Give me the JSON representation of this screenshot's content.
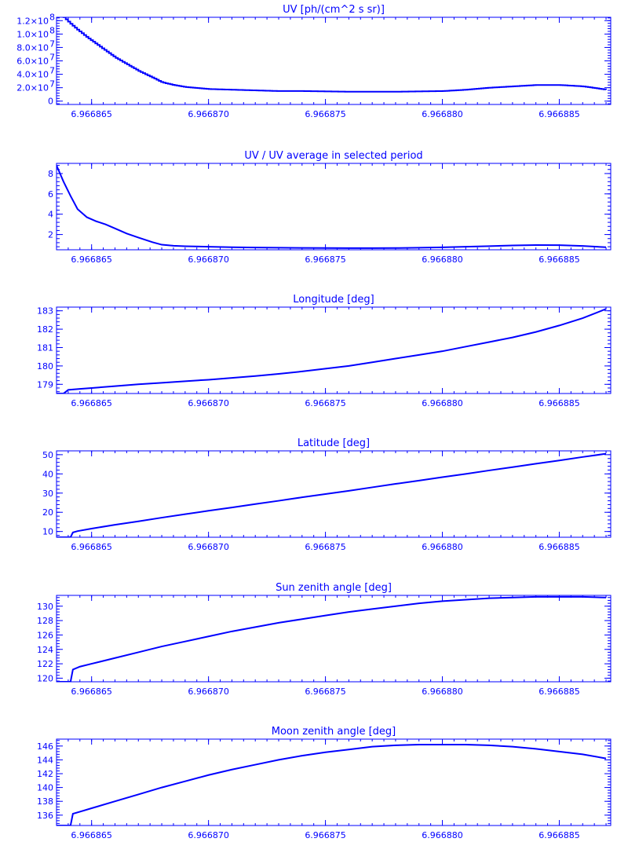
{
  "colors": {
    "ink": "#0000ff",
    "background": "#ffffff"
  },
  "chart_data": [
    {
      "type": "line",
      "title": "UV [ph/(cm^2 s sr)]",
      "xlabel": "",
      "ylabel": "",
      "grid": false,
      "xlim": [
        6.9668635,
        6.9668872
      ],
      "ylim": [
        -5000000,
        125000000
      ],
      "xticks": [
        6.966865,
        6.96687,
        6.966875,
        6.96688,
        6.966885
      ],
      "xtick_labels": [
        "6.966865",
        "6.966870",
        "6.966875",
        "6.966880",
        "6.966885"
      ],
      "yticks": [
        0,
        20000000,
        40000000,
        60000000,
        80000000,
        100000000,
        120000000
      ],
      "ytick_labels": [
        {
          "mantissa": "0",
          "exponent": ""
        },
        {
          "mantissa": "2.0×10",
          "exponent": "7"
        },
        {
          "mantissa": "4.0×10",
          "exponent": "7"
        },
        {
          "mantissa": "6.0×10",
          "exponent": "7"
        },
        {
          "mantissa": "8.0×10",
          "exponent": "7"
        },
        {
          "mantissa": "1.0×10",
          "exponent": "8"
        },
        {
          "mantissa": "1.2×10",
          "exponent": "8"
        }
      ],
      "line_style": "steps",
      "x": [
        6.9668637,
        6.9668638,
        6.9668641,
        6.9668644,
        6.9668648,
        6.9668652,
        6.9668656,
        6.966866,
        6.9668665,
        6.966867,
        6.9668676,
        6.966868,
        6.9668685,
        6.966869,
        6.96687,
        6.966871,
        6.966872,
        6.966873,
        6.966874,
        6.966875,
        6.966876,
        6.966877,
        6.966878,
        6.966879,
        6.96688,
        6.966881,
        6.966882,
        6.966883,
        6.966884,
        6.966885,
        6.966886,
        6.966887
      ],
      "values": [
        130000000,
        125000000,
        115000000,
        106000000,
        95000000,
        85000000,
        75000000,
        65000000,
        55000000,
        45000000,
        35000000,
        28000000,
        24000000,
        21000000,
        18000000,
        17000000,
        16000000,
        15000000,
        15000000,
        14500000,
        14000000,
        14000000,
        14000000,
        14500000,
        15000000,
        17000000,
        20000000,
        22000000,
        24000000,
        24000000,
        22000000,
        17000000
      ]
    },
    {
      "type": "line",
      "title": "UV / UV average in selected period",
      "xlabel": "",
      "ylabel": "",
      "grid": false,
      "xlim": [
        6.9668635,
        6.9668872
      ],
      "ylim": [
        0.5,
        9
      ],
      "xticks": [
        6.966865,
        6.96687,
        6.966875,
        6.96688,
        6.966885
      ],
      "xtick_labels": [
        "6.966865",
        "6.966870",
        "6.966875",
        "6.966880",
        "6.966885"
      ],
      "yticks": [
        2,
        4,
        6,
        8
      ],
      "ytick_labels": [
        {
          "mantissa": "2",
          "exponent": ""
        },
        {
          "mantissa": "4",
          "exponent": ""
        },
        {
          "mantissa": "6",
          "exponent": ""
        },
        {
          "mantissa": "8",
          "exponent": ""
        }
      ],
      "line_style": "line",
      "x": [
        6.9668635,
        6.9668638,
        6.9668641,
        6.9668644,
        6.9668648,
        6.9668652,
        6.9668656,
        6.966866,
        6.9668665,
        6.966867,
        6.9668676,
        6.966868,
        6.9668685,
        6.966869,
        6.96687,
        6.966871,
        6.966872,
        6.966873,
        6.966874,
        6.966875,
        6.966876,
        6.966877,
        6.966878,
        6.966879,
        6.96688,
        6.966881,
        6.966882,
        6.966883,
        6.966884,
        6.966885,
        6.966886,
        6.966887
      ],
      "values": [
        8.8,
        7.2,
        5.8,
        4.5,
        3.7,
        3.3,
        3.0,
        2.6,
        2.1,
        1.7,
        1.25,
        1.0,
        0.9,
        0.85,
        0.8,
        0.75,
        0.72,
        0.7,
        0.68,
        0.67,
        0.66,
        0.66,
        0.67,
        0.7,
        0.74,
        0.8,
        0.86,
        0.92,
        0.96,
        0.95,
        0.88,
        0.75
      ]
    },
    {
      "type": "line",
      "title": "Longitude [deg]",
      "xlabel": "",
      "ylabel": "",
      "grid": false,
      "xlim": [
        6.9668635,
        6.9668872
      ],
      "ylim": [
        178.5,
        183.2
      ],
      "xticks": [
        6.966865,
        6.96687,
        6.966875,
        6.96688,
        6.966885
      ],
      "xtick_labels": [
        "6.966865",
        "6.966870",
        "6.966875",
        "6.966880",
        "6.966885"
      ],
      "yticks": [
        179,
        180,
        181,
        182,
        183
      ],
      "ytick_labels": [
        {
          "mantissa": "179",
          "exponent": ""
        },
        {
          "mantissa": "180",
          "exponent": ""
        },
        {
          "mantissa": "181",
          "exponent": ""
        },
        {
          "mantissa": "182",
          "exponent": ""
        },
        {
          "mantissa": "183",
          "exponent": ""
        }
      ],
      "line_style": "line",
      "x": [
        6.9668635,
        6.9668638,
        6.9668639,
        6.966864,
        6.9668645,
        6.966865,
        6.966866,
        6.966867,
        6.966868,
        6.966869,
        6.96687,
        6.966871,
        6.966872,
        6.966873,
        6.966874,
        6.966875,
        6.966876,
        6.966877,
        6.966878,
        6.966879,
        6.96688,
        6.966881,
        6.966882,
        6.966883,
        6.966884,
        6.966885,
        6.966886,
        6.966887
      ],
      "values": [
        178.5,
        178.5,
        178.6,
        178.7,
        178.75,
        178.8,
        178.9,
        179.0,
        179.08,
        179.17,
        179.25,
        179.35,
        179.45,
        179.57,
        179.7,
        179.85,
        180.0,
        180.2,
        180.4,
        180.6,
        180.8,
        181.05,
        181.3,
        181.55,
        181.85,
        182.2,
        182.6,
        183.1
      ]
    },
    {
      "type": "line",
      "title": "Latitude [deg]",
      "xlabel": "",
      "ylabel": "",
      "grid": false,
      "xlim": [
        6.9668635,
        6.9668872
      ],
      "ylim": [
        7,
        52
      ],
      "xticks": [
        6.966865,
        6.96687,
        6.966875,
        6.96688,
        6.966885
      ],
      "xtick_labels": [
        "6.966865",
        "6.966870",
        "6.966875",
        "6.966880",
        "6.966885"
      ],
      "yticks": [
        10,
        20,
        30,
        40,
        50
      ],
      "ytick_labels": [
        {
          "mantissa": "10",
          "exponent": ""
        },
        {
          "mantissa": "20",
          "exponent": ""
        },
        {
          "mantissa": "30",
          "exponent": ""
        },
        {
          "mantissa": "40",
          "exponent": ""
        },
        {
          "mantissa": "50",
          "exponent": ""
        }
      ],
      "line_style": "line",
      "x": [
        6.9668635,
        6.9668641,
        6.9668642,
        6.9668644,
        6.966865,
        6.966866,
        6.966867,
        6.966868,
        6.966869,
        6.96687,
        6.966871,
        6.966872,
        6.966873,
        6.966874,
        6.966875,
        6.966876,
        6.966877,
        6.966878,
        6.966879,
        6.96688,
        6.966881,
        6.966882,
        6.966883,
        6.966884,
        6.966885,
        6.966886,
        6.966887
      ],
      "values": [
        7,
        7,
        9.5,
        10.2,
        11.5,
        13.5,
        15.3,
        17.2,
        19.0,
        20.8,
        22.5,
        24.3,
        26.0,
        27.8,
        29.5,
        31.2,
        33.0,
        34.8,
        36.5,
        38.3,
        40.0,
        41.8,
        43.5,
        45.3,
        47.0,
        48.8,
        50.5
      ]
    },
    {
      "type": "line",
      "title": "Sun zenith angle [deg]",
      "xlabel": "",
      "ylabel": "",
      "grid": false,
      "xlim": [
        6.9668635,
        6.9668872
      ],
      "ylim": [
        119.5,
        131.5
      ],
      "xticks": [
        6.966865,
        6.96687,
        6.966875,
        6.96688,
        6.966885
      ],
      "xtick_labels": [
        "6.966865",
        "6.966870",
        "6.966875",
        "6.966880",
        "6.966885"
      ],
      "yticks": [
        120,
        122,
        124,
        126,
        128,
        130
      ],
      "ytick_labels": [
        {
          "mantissa": "120",
          "exponent": ""
        },
        {
          "mantissa": "122",
          "exponent": ""
        },
        {
          "mantissa": "124",
          "exponent": ""
        },
        {
          "mantissa": "126",
          "exponent": ""
        },
        {
          "mantissa": "128",
          "exponent": ""
        },
        {
          "mantissa": "130",
          "exponent": ""
        }
      ],
      "line_style": "line",
      "x": [
        6.9668635,
        6.9668641,
        6.9668642,
        6.9668645,
        6.966865,
        6.966866,
        6.966867,
        6.966868,
        6.966869,
        6.96687,
        6.966871,
        6.966872,
        6.966873,
        6.966874,
        6.966875,
        6.966876,
        6.966877,
        6.966878,
        6.966879,
        6.96688,
        6.966881,
        6.966882,
        6.966883,
        6.966884,
        6.966885,
        6.966886,
        6.966887
      ],
      "values": [
        119.5,
        119.5,
        121.2,
        121.6,
        122.0,
        122.8,
        123.6,
        124.4,
        125.1,
        125.8,
        126.5,
        127.1,
        127.7,
        128.2,
        128.7,
        129.2,
        129.6,
        130.0,
        130.4,
        130.7,
        130.9,
        131.1,
        131.2,
        131.3,
        131.3,
        131.3,
        131.2
      ]
    },
    {
      "type": "line",
      "title": "Moon zenith angle [deg]",
      "xlabel": "",
      "ylabel": "",
      "grid": false,
      "xlim": [
        6.9668635,
        6.9668872
      ],
      "ylim": [
        134.5,
        147
      ],
      "xticks": [
        6.966865,
        6.96687,
        6.966875,
        6.96688,
        6.966885
      ],
      "xtick_labels": [
        "6.966865",
        "6.966870",
        "6.966875",
        "6.966880",
        "6.966885"
      ],
      "yticks": [
        136,
        138,
        140,
        142,
        144,
        146
      ],
      "ytick_labels": [
        {
          "mantissa": "136",
          "exponent": ""
        },
        {
          "mantissa": "138",
          "exponent": ""
        },
        {
          "mantissa": "140",
          "exponent": ""
        },
        {
          "mantissa": "142",
          "exponent": ""
        },
        {
          "mantissa": "144",
          "exponent": ""
        },
        {
          "mantissa": "146",
          "exponent": ""
        }
      ],
      "line_style": "line",
      "x": [
        6.9668635,
        6.9668641,
        6.9668642,
        6.9668645,
        6.966865,
        6.966866,
        6.966867,
        6.966868,
        6.966869,
        6.96687,
        6.966871,
        6.966872,
        6.966873,
        6.966874,
        6.966875,
        6.966876,
        6.966877,
        6.966878,
        6.966879,
        6.96688,
        6.966881,
        6.966882,
        6.966883,
        6.966884,
        6.966885,
        6.966886,
        6.966887
      ],
      "values": [
        134.5,
        134.5,
        136.2,
        136.5,
        137.0,
        138.0,
        139.0,
        140.0,
        140.9,
        141.8,
        142.6,
        143.3,
        144.0,
        144.6,
        145.1,
        145.5,
        145.9,
        146.1,
        146.2,
        146.2,
        146.2,
        146.1,
        145.9,
        145.6,
        145.2,
        144.8,
        144.2
      ]
    }
  ]
}
